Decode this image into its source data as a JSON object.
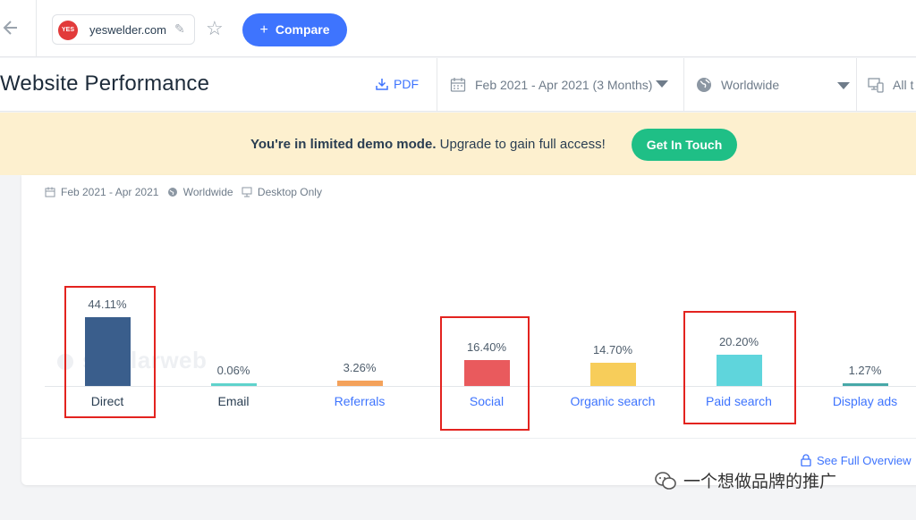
{
  "topbar": {
    "site_name": "yeswelder.com",
    "site_logo_text": "YES",
    "compare_label": "Compare"
  },
  "header": {
    "title": "Website Performance",
    "pdf_label": "PDF",
    "date_range": "Feb 2021 - Apr 2021 (3 Months)",
    "region": "Worldwide",
    "device": "All t"
  },
  "banner": {
    "bold_text": "You're in limited demo mode.",
    "text": " Upgrade to gain full access!",
    "button_label": "Get In Touch"
  },
  "card": {
    "meta_date": "Feb 2021 - Apr 2021",
    "meta_region": "Worldwide",
    "meta_device": "Desktop Only",
    "watermark": "similarweb",
    "see_full_label": "See Full Overview"
  },
  "chart_data": {
    "type": "bar",
    "categories": [
      "Direct",
      "Email",
      "Referrals",
      "Social",
      "Organic search",
      "Paid search",
      "Display ads"
    ],
    "values": [
      44.11,
      0.06,
      3.26,
      16.4,
      14.7,
      20.2,
      1.27
    ],
    "labels": [
      "44.11%",
      "0.06%",
      "3.26%",
      "16.40%",
      "14.70%",
      "20.20%",
      "1.27%"
    ],
    "colors": [
      "#3a5e8c",
      "#5fd3cc",
      "#f4a25b",
      "#e95a5d",
      "#f7cd5a",
      "#5fd5dc",
      "#47a8a8"
    ],
    "highlighted": [
      "Direct",
      "Social",
      "Paid search"
    ]
  },
  "watermark_caption": "一个想做品牌的推广"
}
